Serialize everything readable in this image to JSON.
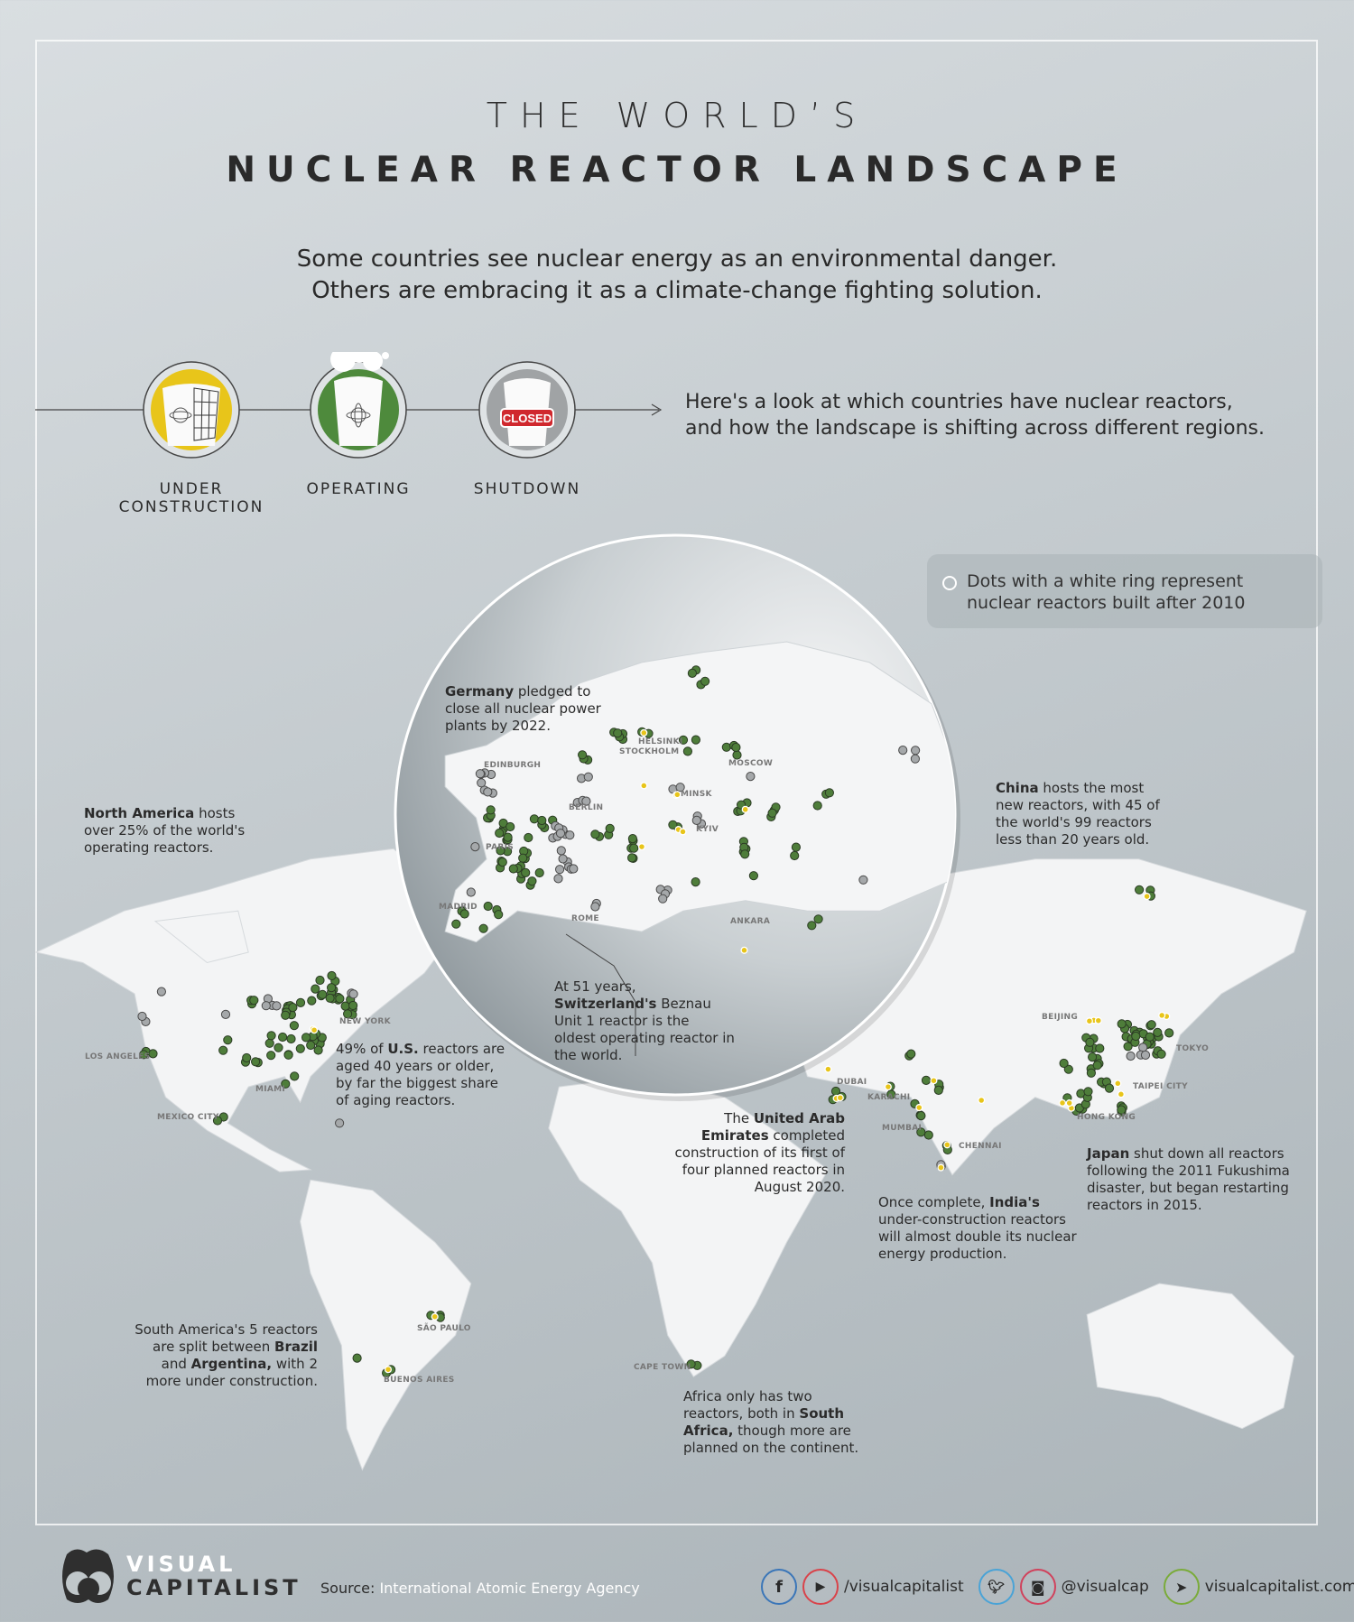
{
  "header": {
    "title_line1": "THE WORLD’S",
    "title_line2": "NUCLEAR REACTOR LANDSCAPE",
    "subtitle_line1": "Some countries see nuclear energy as an environmental danger.",
    "subtitle_line2": "Others are embracing it as a climate-change fighting solution."
  },
  "status_legend": {
    "items": [
      {
        "label_line1": "UNDER",
        "label_line2": "CONSTRUCTION",
        "color": "#e8c51a",
        "icon": "reactor-scaffold-icon"
      },
      {
        "label_line1": "OPERATING",
        "label_line2": "",
        "color": "#4e8a3c",
        "icon": "reactor-steam-icon"
      },
      {
        "label_line1": "SHUTDOWN",
        "label_line2": "",
        "color": "#a0a3a5",
        "icon": "reactor-closed-icon",
        "sign": "CLOSED"
      }
    ],
    "intro_line1": "Here's a look at which countries have nuclear reactors,",
    "intro_line2": "and how the landscape is shifting across different regions."
  },
  "ring_legend": {
    "line1": "Dots with a white ring represent",
    "line2": "nuclear reactors built after 2010"
  },
  "chart_data": {
    "type": "scatter",
    "map": "world reactor locations",
    "status_colors": {
      "under_construction": "#e8c51a",
      "operating": "#4e7d3a",
      "shutdown": "#a5a8aa"
    }
  },
  "cities": {
    "los_angeles": "LOS ANGELES",
    "mexico_city": "MEXICO CITY",
    "miami": "MIAMI",
    "new_york": "NEW YORK",
    "sao_paulo": "SÃO PAULO",
    "buenos_aires": "BUENOS AIRES",
    "cape_town": "CAPE TOWN",
    "dubai": "DUBAI",
    "karachi": "KARACHI",
    "mumbai": "MUMBAI",
    "chennai": "CHENNAI",
    "beijing": "BEIJING",
    "tokyo": "TOKYO",
    "taipei": "TAIPEI CITY",
    "hong_kong": "HONG KONG",
    "edinburgh": "EDINBURGH",
    "helsinki": "HELSINKI",
    "stockholm": "STOCKHOLM",
    "moscow": "MOSCOW",
    "minsk": "MINSK",
    "berlin": "BERLIN",
    "kyiv": "KYIV",
    "paris": "PARIS",
    "madrid": "MADRID",
    "rome": "ROME",
    "ankara": "ANKARA"
  },
  "notes": {
    "north_america": {
      "b": "North America",
      "t": " hosts over 25% of the world's operating reactors."
    },
    "germany": {
      "b": "Germany",
      "t": " pledged to close all nuclear power plants by 2022."
    },
    "china": {
      "b": "China",
      "t": " hosts the most new reactors, with 45 of the world's 99 reactors less than 20 years old."
    },
    "switzerland": {
      "a": "At 51 years, ",
      "b": "Switzerland's",
      "t": " Beznau Unit 1 reactor is the oldest operating reactor in the world."
    },
    "us": {
      "a": "49% of ",
      "b": "U.S.",
      "t": " reactors are aged 40 years or older, by far the biggest share of aging reactors."
    },
    "uae": {
      "a": "The ",
      "b": "United Arab Emirates",
      "t": " completed construction of its first of four planned reactors in August 2020."
    },
    "japan": {
      "b": "Japan",
      "t": " shut down all reactors following the 2011 Fukushima disaster, but began restarting reactors in 2015."
    },
    "india": {
      "a": "Once complete, ",
      "b": "India's",
      "t": " under-construction reactors will almost double its nuclear energy production."
    },
    "south_america": {
      "a": "South America's 5 reactors are split between ",
      "b": "Brazil",
      "c": " and ",
      "b2": "Argentina,",
      "t": " with 2 more under construction."
    },
    "africa": {
      "a": "Africa only has two reactors, both in ",
      "b": "South Africa,",
      "t": " though more are planned on the continent."
    }
  },
  "footer": {
    "brand_line1": "VISUAL",
    "brand_line2": "CAPITALIST",
    "source_label": "Source:",
    "source": "International Atomic Energy Agency",
    "social1": "/visualcapitalist",
    "social2": "@visualcap",
    "website": "visualcapitalist.com",
    "colors": {
      "facebook": "#3b76b8",
      "youtube": "#d9434a",
      "twitter": "#4aa3d6",
      "instagram": "#d0425c",
      "web": "#7aab3a"
    }
  }
}
